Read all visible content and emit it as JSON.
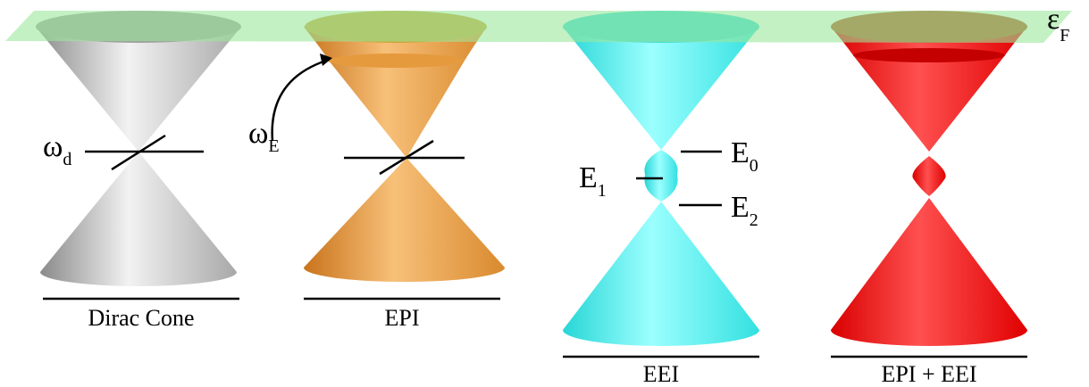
{
  "fermi_label": {
    "symbol": "ε",
    "subscript": "F"
  },
  "panels": [
    {
      "caption": "Dirac Cone",
      "annotations": [
        {
          "symbol": "ω",
          "subscript": "d"
        }
      ]
    },
    {
      "caption": "EPI",
      "annotations": [
        {
          "symbol": "ω",
          "subscript": "E"
        }
      ]
    },
    {
      "caption": "EEI",
      "annotations": [
        {
          "symbol": "E",
          "subscript": "0"
        },
        {
          "symbol": "E",
          "subscript": "1"
        },
        {
          "symbol": "E",
          "subscript": "2"
        }
      ]
    },
    {
      "caption": "EPI + EEI",
      "annotations": []
    }
  ]
}
